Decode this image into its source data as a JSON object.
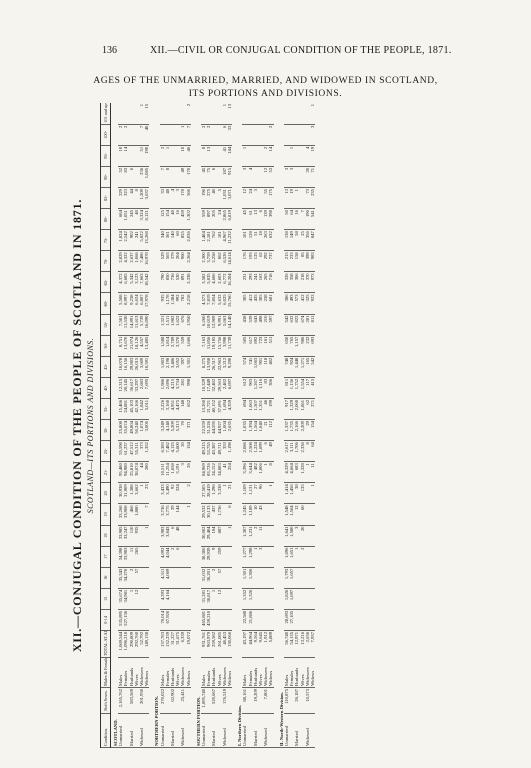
{
  "header": {
    "page_number": "136",
    "running_title": "XII.—CIVIL OR CONJUGAL CONDITION OF THE PEOPLE, 1871.",
    "title_line1": "AGES OF THE UNMARRIED, MARRIED, AND WIDOWED IN SCOTLAND,",
    "title_line2": "ITS PORTIONS AND DIVISIONS."
  },
  "table": {
    "title": "XII.—CONJUGAL CONDITION OF THE PEOPLE OF SCOTLAND IN 1871.",
    "subtitle": "SCOTLAND—ITS PORTIONS AND DIVISIONS.",
    "head": {
      "condition": "Condition.",
      "total": "TOTAL AT ALL AGES.",
      "both_sexes": "Both Sexes.",
      "males_females": "Males & Females.",
      "ages": [
        "0-14",
        "15",
        "16",
        "17",
        "18",
        "19",
        "20",
        "21-",
        "25-",
        "30-",
        "35-",
        "40-",
        "45-",
        "50-",
        "55-",
        "60-",
        "65-",
        "70-",
        "75-",
        "80-",
        "85-",
        "90-",
        "95-",
        "100-",
        "101 and upwards."
      ]
    },
    "rows": [
      {
        "type": "sec",
        "label": "SCOTLAND."
      },
      {
        "cond": "Unmarried",
        "both": "2,165,762",
        "sex": "Males",
        "total": "1,069,544",
        "ages": [
          "535,895",
          "35,674",
          "35,343",
          "34,398",
          "33,985",
          "33,268",
          "30,938",
          "95,480",
          "55,598",
          "25,808",
          "15,486",
          "12,315",
          "10,078",
          "8,751",
          "7,581",
          "5,508",
          "4,372",
          "2,829",
          "1,824",
          "684",
          "229",
          "52",
          "10",
          "2",
          ""
        ]
      },
      {
        "cond": "",
        "both": "",
        "sex": "Females",
        "total": "1,096,218",
        "ages": [
          "527,136",
          "34,981",
          "34,270",
          "33,983",
          "33,247",
          "33,908",
          "31,909",
          "94,980",
          "61,237",
          "35,674",
          "24,881",
          "20,145",
          "16,156",
          "13,670",
          "11,530",
          "8,997",
          "6,685",
          "4,322",
          "2,542",
          "1,051",
          "323",
          "83",
          "14",
          "2",
          ""
        ]
      },
      {
        "cond": "Married",
        "both": "583,569",
        "sex": "Husbands",
        "total": "290,809",
        "ages": [
          "",
          "1",
          "2",
          "11",
          "110",
          "466",
          "1,388",
          "25,810",
          "47,512",
          "49,804",
          "45,103",
          "36,617",
          "29,803",
          "21,974",
          "14,891",
          "9,238",
          "5,342",
          "2,637",
          "902",
          "245",
          "44",
          "6",
          "",
          "",
          ""
        ]
      },
      {
        "cond": "",
        "both": "",
        "sex": "Wives",
        "total": "292,760",
        "ages": [
          "",
          "12",
          "57",
          "265",
          "935",
          "1,880",
          "3,662",
          "38,074",
          "55,311",
          "50,240",
          "42,166",
          "33,297",
          "26,015",
          "18,126",
          "11,613",
          "6,624",
          "3,123",
          "1,066",
          "241",
          "40",
          "8",
          "",
          "",
          "",
          ""
        ]
      },
      {
        "cond": "Widowed",
        "both": "201,930",
        "sex": "Widowers",
        "total": "52,792",
        "ages": [
          "",
          "",
          "",
          "",
          "",
          "",
          "1",
          "44",
          "373",
          "1,074",
          "1,842",
          "2,683",
          "3,609",
          "4,557",
          "5,739",
          "6,807",
          "7,663",
          "7,486",
          "5,822",
          "3,324",
          "1,209",
          "236",
          "51",
          "7",
          "1"
        ]
      },
      {
        "cond": "",
        "both": "",
        "sex": "Widows",
        "total": "149,138",
        "ages": [
          "",
          "",
          "",
          "",
          "1",
          "7",
          "23",
          "280",
          "1,352",
          "3,006",
          "5,011",
          "7,695",
          "10,591",
          "13,405",
          "16,090",
          "17,978",
          "18,542",
          "16,978",
          "13,268",
          "8,121",
          "3,637",
          "1,085",
          "190",
          "40",
          "15"
        ]
      },
      {
        "type": "gap"
      },
      {
        "type": "sec",
        "label": "NORTHERN PORTION."
      },
      {
        "cond": "Unmarried",
        "both": "270,022",
        "sex": "Males",
        "total": "137,783",
        "ages": [
          "70,014",
          "4,393",
          "4,311",
          "4,092",
          "3,983",
          "3,736",
          "3,433",
          "10,511",
          "6,383",
          "3,249",
          "2,226",
          "1,986",
          "1,803",
          "1,588",
          "1,321",
          "935",
          "790",
          "529",
          "340",
          "125",
          "33",
          "7",
          "2",
          "",
          ""
        ]
      },
      {
        "cond": "",
        "both": "",
        "sex": "Females",
        "total": "132,239",
        "ages": [
          "67,926",
          "4,164",
          "4,069",
          "4,044",
          "3,843",
          "3,775",
          "3,490",
          "11,254",
          "7,482",
          "4,148",
          "3,160",
          "2,696",
          "2,198",
          "1,814",
          "1,511",
          "1,178",
          "850",
          "563",
          "361",
          "154",
          "48",
          "8",
          "1",
          "",
          ""
        ]
      },
      {
        "cond": "Married",
        "both": "62,902",
        "sex": "Husbands",
        "total": "31,227",
        "ages": [
          "",
          "",
          "",
          "2",
          "6",
          "29",
          "92",
          "1,658",
          "4,125",
          "5,209",
          "4,951",
          "4,215",
          "3,486",
          "2,789",
          "1,982",
          "1,384",
          "736",
          "379",
          "140",
          "40",
          "4",
          "",
          "",
          "",
          ""
        ]
      },
      {
        "cond": "",
        "both": "",
        "sex": "Wives",
        "total": "31,675",
        "ages": [
          "",
          "",
          "",
          "6",
          "48",
          "144",
          "324",
          "3,191",
          "5,600",
          "5,313",
          "4,475",
          "3,734",
          "3,052",
          "2,370",
          "1,622",
          "992",
          "520",
          "204",
          "60",
          "16",
          "3",
          "",
          "",
          "",
          ""
        ]
      },
      {
        "cond": "Widowed",
        "both": "25,411",
        "sex": "Widowers",
        "total": "6,339",
        "ages": [
          "",
          "",
          "",
          "",
          "",
          "",
          "",
          "3",
          "20",
          "70",
          "148",
          "281",
          "397",
          "559",
          "676",
          "782",
          "891",
          "960",
          "855",
          "459",
          "178",
          "49",
          "10",
          "1",
          ""
        ]
      },
      {
        "cond": "",
        "both": "",
        "sex": "Widows",
        "total": "19,072",
        "ages": [
          "",
          "",
          "",
          "",
          "",
          "1",
          "2",
          "26",
          "154",
          "371",
          "652",
          "998",
          "1,301",
          "1,666",
          "1,950",
          "2,218",
          "2,338",
          "2,364",
          "2,036",
          "1,302",
          "566",
          "170",
          "46",
          "7",
          "2"
        ]
      },
      {
        "type": "gap"
      },
      {
        "type": "sec",
        "label": "SOUTHERN PORTION."
      },
      {
        "cond": "Unmarried",
        "both": "1,895,740",
        "sex": "Males",
        "total": "931,761",
        "ages": [
          "465,881",
          "31,281",
          "31,032",
          "30,306",
          "30,002",
          "29,532",
          "27,505",
          "84,969",
          "49,215",
          "22,559",
          "13,260",
          "10,329",
          "8,275",
          "7,163",
          "6,260",
          "4,573",
          "3,582",
          "2,300",
          "1,484",
          "559",
          "196",
          "45",
          "8",
          "2",
          ""
        ]
      },
      {
        "cond": "",
        "both": "",
        "sex": "Females",
        "total": "963,979",
        "ages": [
          "459,210",
          "30,817",
          "30,201",
          "29,939",
          "29,404",
          "30,133",
          "28,419",
          "83,726",
          "53,755",
          "31,526",
          "21,721",
          "17,449",
          "13,958",
          "11,856",
          "10,019",
          "7,819",
          "5,835",
          "3,759",
          "2,181",
          "897",
          "275",
          "75",
          "13",
          "2",
          ""
        ]
      },
      {
        "cond": "Married",
        "both": "520,667",
        "sex": "Husbands",
        "total": "259,582",
        "ages": [
          "",
          "1",
          "2",
          "9",
          "104",
          "437",
          "1,296",
          "24,152",
          "43,387",
          "44,595",
          "40,152",
          "32,402",
          "26,317",
          "19,185",
          "12,909",
          "7,854",
          "4,606",
          "2,258",
          "762",
          "205",
          "40",
          "6",
          "",
          "",
          ""
        ]
      },
      {
        "cond": "",
        "both": "",
        "sex": "Wives",
        "total": "261,085",
        "ages": [
          "",
          "12",
          "57",
          "259",
          "887",
          "1,736",
          "3,338",
          "34,883",
          "49,711",
          "44,927",
          "37,691",
          "29,563",
          "22,963",
          "15,756",
          "9,991",
          "5,632",
          "2,603",
          "862",
          "181",
          "24",
          "5",
          "",
          "",
          "",
          ""
        ]
      },
      {
        "cond": "Widowed",
        "both": "176,519",
        "sex": "Widowers",
        "total": "46,453",
        "ages": [
          "",
          "",
          "",
          "",
          "",
          "",
          "1",
          "41",
          "353",
          "1,004",
          "1,694",
          "2,402",
          "3,212",
          "3,998",
          "5,063",
          "6,025",
          "6,772",
          "6,526",
          "4,967",
          "2,865",
          "1,031",
          "187",
          "41",
          "6",
          "1"
        ]
      },
      {
        "cond": "",
        "both": "",
        "sex": "Widows",
        "total": "130,066",
        "ages": [
          "",
          "",
          "",
          "",
          "1",
          "6",
          "21",
          "254",
          "1,198",
          "2,635",
          "4,359",
          "6,697",
          "9,290",
          "11,739",
          "14,140",
          "15,760",
          "16,204",
          "14,614",
          "11,232",
          "6,819",
          "3,071",
          "915",
          "144",
          "33",
          "13"
        ]
      },
      {
        "type": "gap"
      },
      {
        "type": "sec",
        "label": "I. Northern Division."
      },
      {
        "cond": "Unmarried",
        "both": "88,161",
        "sex": "Males",
        "total": "43,197",
        "ages": [
          "22,588",
          "1,352",
          "1,301",
          "1,277",
          "1,307",
          "1,245",
          "1,109",
          "3,396",
          "2,086",
          "1,035",
          "694",
          "612",
          "574",
          "505",
          "438",
          "305",
          "231",
          "176",
          "101",
          "45",
          "12",
          "3",
          "1",
          "",
          ""
        ]
      },
      {
        "cond": "",
        "both": "",
        "sex": "Females",
        "total": "44,964",
        "ages": [
          "21,886",
          "1,326",
          "1,306",
          "1,298",
          "1,231",
          "1,189",
          "1,131",
          "3,644",
          "2,508",
          "1,394",
          "1,063",
          "903",
          "741",
          "617",
          "539",
          "412",
          "293",
          "193",
          "128",
          "61",
          "24",
          "4",
          "",
          "",
          ""
        ]
      },
      {
        "cond": "Married",
        "both": "19,209",
        "sex": "Husbands",
        "total": "9,564",
        "ages": [
          "",
          "",
          "",
          "1",
          "2",
          "10",
          "27",
          "482",
          "1,224",
          "1,564",
          "1,507",
          "1,267",
          "1,063",
          "892",
          "643",
          "435",
          "241",
          "125",
          "51",
          "13",
          "3",
          "",
          "",
          "",
          ""
        ]
      },
      {
        "cond": "",
        "both": "",
        "sex": "Wives",
        "total": "9,645",
        "ages": [
          "",
          "",
          "",
          "3",
          "11",
          "43",
          "96",
          "1,006",
          "1,699",
          "1,640",
          "1,351",
          "1,116",
          "901",
          "723",
          "498",
          "305",
          "163",
          "62",
          "18",
          "6",
          "",
          "",
          "",
          "",
          ""
        ]
      },
      {
        "cond": "Widowed",
        "both": "7,801",
        "sex": "Widowers",
        "total": "1,912",
        "ages": [
          "",
          "",
          "",
          "",
          "",
          "",
          "",
          "1",
          "6",
          "21",
          "46",
          "83",
          "118",
          "161",
          "210",
          "238",
          "265",
          "292",
          "263",
          "139",
          "55",
          "12",
          "2",
          "",
          ""
        ]
      },
      {
        "cond": "",
        "both": "",
        "sex": "Widows",
        "total": "5,889",
        "ages": [
          "",
          "",
          "",
          "",
          "",
          "",
          "1",
          "8",
          "49",
          "112",
          "199",
          "306",
          "402",
          "511",
          "597",
          "681",
          "718",
          "737",
          "632",
          "398",
          "175",
          "53",
          "14",
          "2",
          ""
        ]
      },
      {
        "type": "gap"
      },
      {
        "type": "sec",
        "label": "II. North-Western Division."
      },
      {
        "cond": "Unmarried",
        "both": "110,875",
        "sex": "Males",
        "total": "56,740",
        "ages": [
          "28,693",
          "1,826",
          "1,793",
          "1,696",
          "1,641",
          "1,548",
          "1,414",
          "4,329",
          "2,617",
          "1,337",
          "917",
          "811",
          "748",
          "650",
          "542",
          "386",
          "326",
          "215",
          "138",
          "50",
          "13",
          "3",
          "",
          "",
          ""
        ]
      },
      {
        "cond": "",
        "both": "",
        "sex": "Females",
        "total": "54,135",
        "ages": [
          "27,105",
          "1,697",
          "1,657",
          "1,651",
          "1,580",
          "1,564",
          "1,456",
          "4,664",
          "3,111",
          "1,735",
          "1,329",
          "1,136",
          "924",
          "765",
          "632",
          "493",
          "358",
          "233",
          "149",
          "64",
          "19",
          "3",
          "1",
          "",
          ""
        ]
      },
      {
        "cond": "Married",
        "both": "26,187",
        "sex": "Husbands",
        "total": "12,971",
        "ages": [
          "",
          "",
          "",
          "1",
          "3",
          "12",
          "38",
          "683",
          "1,706",
          "2,166",
          "2,060",
          "1,752",
          "1,448",
          "1,157",
          "822",
          "573",
          "306",
          "158",
          "58",
          "16",
          "1",
          "",
          "",
          "",
          ""
        ]
      },
      {
        "cond": "",
        "both": "",
        "sex": "Wives",
        "total": "13,216",
        "ages": [
          "",
          "",
          "",
          "2",
          "20",
          "60",
          "135",
          "1,328",
          "2,336",
          "2,209",
          "1,861",
          "1,554",
          "1,271",
          "986",
          "674",
          "412",
          "218",
          "85",
          "25",
          "7",
          "",
          "",
          "",
          "",
          ""
        ]
      },
      {
        "cond": "Widowed",
        "both": "10,573",
        "sex": "Widowers",
        "total": "2,636",
        "ages": [
          "",
          "",
          "",
          "",
          "",
          "",
          "",
          "1",
          "8",
          "29",
          "62",
          "117",
          "165",
          "232",
          "281",
          "325",
          "370",
          "399",
          "356",
          "190",
          "73",
          "20",
          "4",
          "",
          ""
        ]
      },
      {
        "cond": "",
        "both": "",
        "sex": "Widows",
        "total": "7,937",
        "ages": [
          "",
          "",
          "",
          "",
          "",
          "",
          "1",
          "11",
          "64",
          "154",
          "271",
          "415",
          "542",
          "693",
          "811",
          "923",
          "973",
          "983",
          "847",
          "541",
          "235",
          "71",
          "19",
          "3",
          "1"
        ]
      }
    ]
  }
}
